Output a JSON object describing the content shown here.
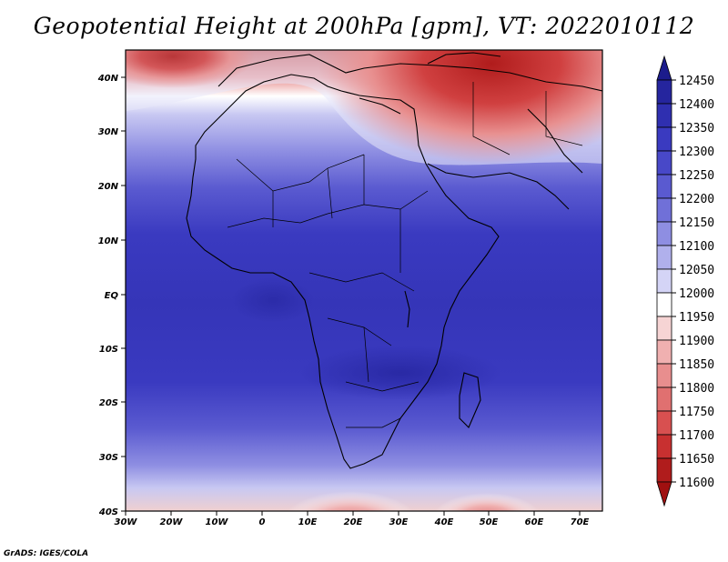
{
  "title": "Geopotential Height at 200hPa [gpm], VT: 2022010112",
  "credit": "GrADS: IGES/COLA",
  "lat_labels": [
    "40N",
    "30N",
    "20N",
    "10N",
    "EQ",
    "10S",
    "20S",
    "30S",
    "40S"
  ],
  "lon_labels": [
    "30W",
    "20W",
    "10W",
    "0",
    "10E",
    "20E",
    "30E",
    "40E",
    "50E",
    "60E",
    "70E"
  ],
  "colorbar": {
    "levels": [
      "12450",
      "12400",
      "12350",
      "12300",
      "12250",
      "12200",
      "12150",
      "12100",
      "12050",
      "12000",
      "11950",
      "11900",
      "11850",
      "11800",
      "11750",
      "11700",
      "11650",
      "11600"
    ],
    "colors": [
      "#1c1c8c",
      "#25259e",
      "#2f2fb0",
      "#3a3ac0",
      "#4848c8",
      "#5a5ad0",
      "#7070d8",
      "#8e8ee2",
      "#b0b0ec",
      "#d4d4f6",
      "#ffffff",
      "#f6d4d4",
      "#f0b0b0",
      "#e88e8e",
      "#e07070",
      "#d85050",
      "#c83030",
      "#b01c1c",
      "#a01010"
    ]
  },
  "chart_data": {
    "type": "heatmap",
    "variable": "Geopotential Height at 200hPa",
    "units": "gpm",
    "valid_time": "2022010112",
    "lon_range": [
      -30,
      75
    ],
    "lat_range": [
      -40,
      45
    ],
    "levels": [
      11600,
      11650,
      11700,
      11750,
      11800,
      11850,
      11900,
      11950,
      12000,
      12050,
      12100,
      12150,
      12200,
      12250,
      12300,
      12350,
      12400,
      12450
    ]
  }
}
